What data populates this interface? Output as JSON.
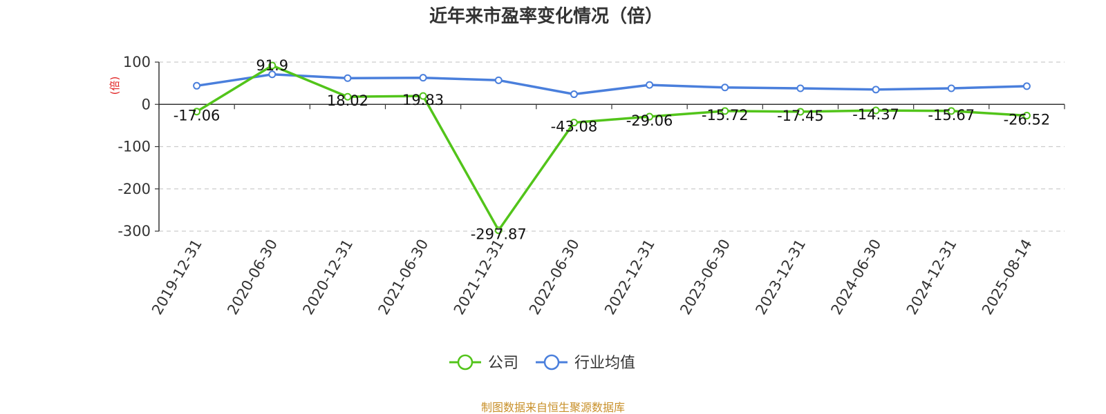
{
  "chart_data": {
    "type": "line",
    "title": "近年来市盈率变化情况（倍）",
    "ylabel": "(倍)",
    "xlabel": "",
    "ylim": [
      -300,
      100
    ],
    "yticks": [
      100,
      0,
      -100,
      -200,
      -300
    ],
    "categories": [
      "2019-12-31",
      "2020-06-30",
      "2020-12-31",
      "2021-06-30",
      "2021-12-31",
      "2022-06-30",
      "2022-12-31",
      "2023-06-30",
      "2023-12-31",
      "2024-06-30",
      "2024-12-31",
      "2025-08-14"
    ],
    "grid": true,
    "legend_position": "bottom",
    "series": [
      {
        "name": "公司",
        "color": "#52c41a",
        "values": [
          -17.06,
          91.9,
          18.02,
          19.83,
          -297.87,
          -43.08,
          -29.06,
          -15.72,
          -17.45,
          -14.37,
          -15.67,
          -26.52
        ],
        "labels": [
          "-17.06",
          "91.9",
          "18.02",
          "19.83",
          "-297.87",
          "-43.08",
          "-29.06",
          "-15.72",
          "-17.45",
          "-14.37",
          "-15.67",
          "-26.52"
        ]
      },
      {
        "name": "行业均值",
        "color": "#4a7fdc",
        "values": [
          44,
          71,
          62,
          63,
          57,
          24,
          46,
          40,
          38,
          35,
          38,
          43
        ]
      }
    ]
  },
  "source_note": "制图数据来自恒生聚源数据库"
}
